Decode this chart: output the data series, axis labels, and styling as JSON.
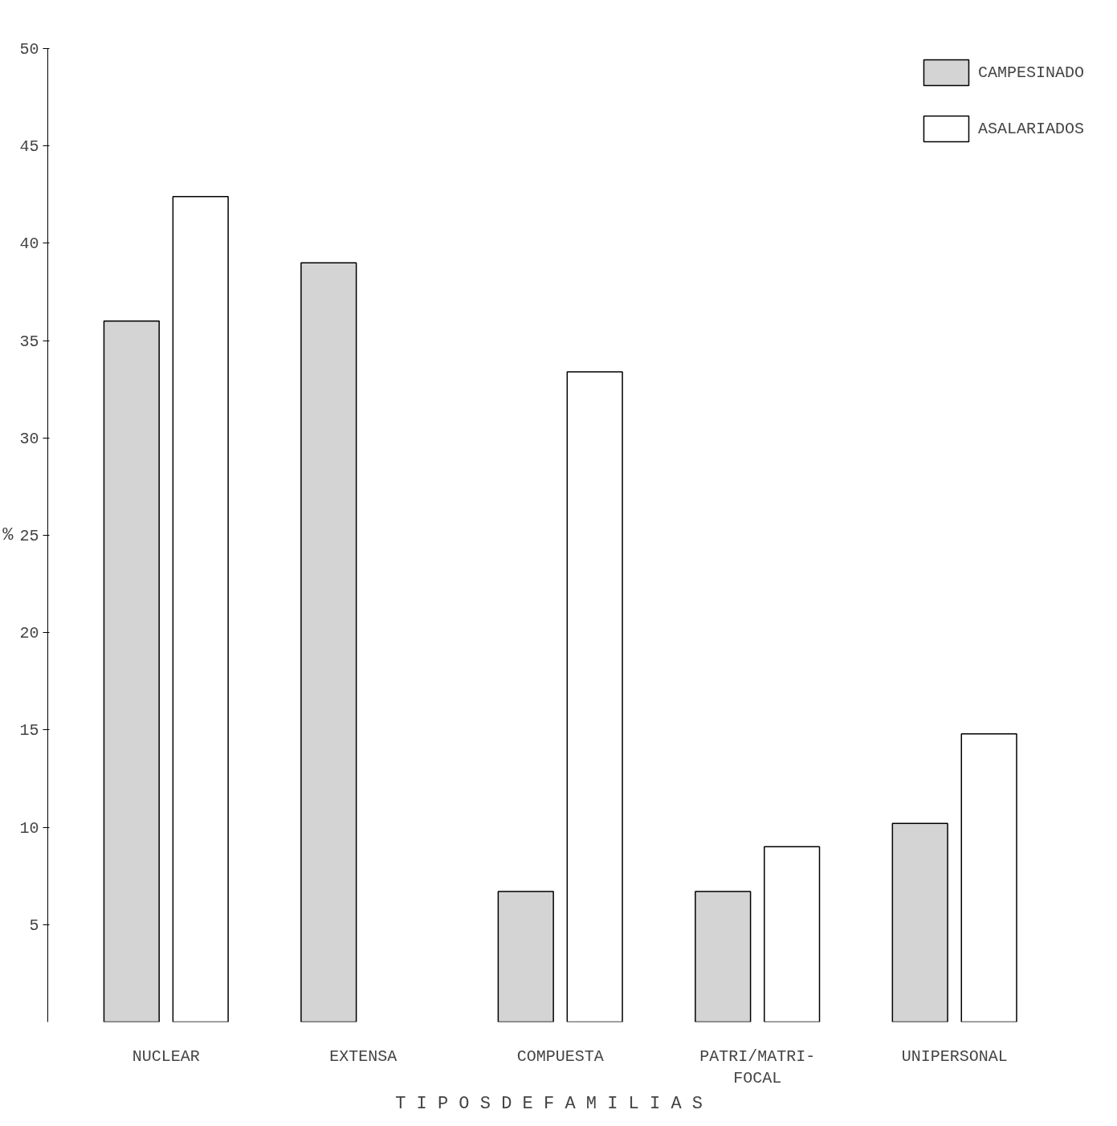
{
  "chart_data": {
    "type": "bar",
    "ylabel": "%",
    "xlabel": "T I P O S   D E   F A M I L I A S",
    "categories": [
      "NUCLEAR",
      "EXTENSA",
      "COMPUESTA",
      "PATRI/MATRI-FOCAL",
      "UNIPERSONAL"
    ],
    "series": [
      {
        "name": "CAMPESINADO",
        "color": "#d4d4d4",
        "values": [
          36,
          39,
          6.7,
          6.7,
          10.2
        ]
      },
      {
        "name": "ASALARIADOS",
        "color": "#ffffff",
        "values": [
          42.4,
          null,
          33.4,
          9,
          14.8
        ]
      }
    ],
    "ylim": [
      0,
      50
    ],
    "yticks": [
      5,
      10,
      15,
      20,
      25,
      30,
      35,
      40,
      45,
      50
    ],
    "grid": false,
    "legend": "top right"
  }
}
